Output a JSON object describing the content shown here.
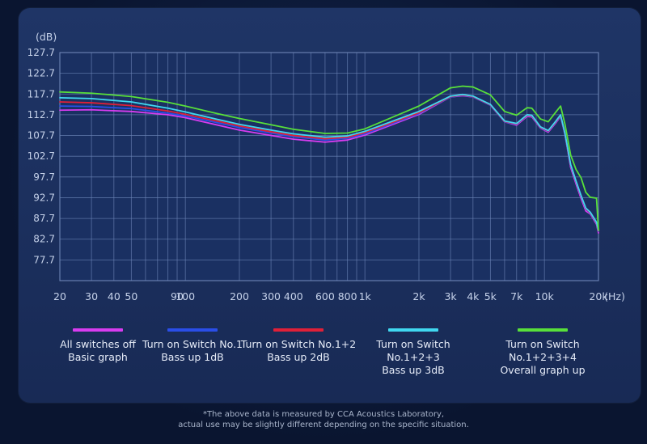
{
  "chart_data": {
    "type": "line",
    "title": "",
    "ylabel": "(dB)",
    "xlabel": "(Hz)",
    "xscale": "log",
    "xlim": [
      20,
      20000
    ],
    "ylim": [
      72.7,
      127.7
    ],
    "y_ticks": [
      127.7,
      122.7,
      117.7,
      112.7,
      107.7,
      102.7,
      97.7,
      92.7,
      87.7,
      82.7,
      77.7
    ],
    "x_tick_labels": [
      {
        "value": 20,
        "label": "20"
      },
      {
        "value": 30,
        "label": "30"
      },
      {
        "value": 40,
        "label": "40"
      },
      {
        "value": 50,
        "label": "50"
      },
      {
        "value": 90,
        "label": "90"
      },
      {
        "value": 100,
        "label": "100"
      },
      {
        "value": 200,
        "label": "200"
      },
      {
        "value": 300,
        "label": "300"
      },
      {
        "value": 400,
        "label": "400"
      },
      {
        "value": 600,
        "label": "600"
      },
      {
        "value": 800,
        "label": "800"
      },
      {
        "value": 1000,
        "label": "1k"
      },
      {
        "value": 2000,
        "label": "2k"
      },
      {
        "value": 3000,
        "label": "3k"
      },
      {
        "value": 4000,
        "label": "4k"
      },
      {
        "value": 5000,
        "label": "5k"
      },
      {
        "value": 7000,
        "label": "7k"
      },
      {
        "value": 10000,
        "label": "10k"
      },
      {
        "value": 20000,
        "label": "20k"
      }
    ],
    "series": [
      {
        "name": "All switches off Basic graph",
        "color": "#d83cf0",
        "points": [
          [
            20,
            113.8
          ],
          [
            30,
            113.9
          ],
          [
            50,
            113.5
          ],
          [
            80,
            112.7
          ],
          [
            100,
            112
          ],
          [
            200,
            109
          ],
          [
            400,
            106.8
          ],
          [
            600,
            106.1
          ],
          [
            800,
            106.6
          ],
          [
            1000,
            107.8
          ],
          [
            2000,
            112.8
          ],
          [
            3000,
            117
          ],
          [
            3500,
            117.3
          ],
          [
            4000,
            117
          ],
          [
            5000,
            115
          ],
          [
            6000,
            111
          ],
          [
            7000,
            110.2
          ],
          [
            8000,
            112.3
          ],
          [
            8500,
            112.2
          ],
          [
            9500,
            109.5
          ],
          [
            10500,
            108.5
          ],
          [
            11500,
            110.6
          ],
          [
            12300,
            112.3
          ],
          [
            13000,
            108
          ],
          [
            14000,
            100
          ],
          [
            15000,
            96
          ],
          [
            16000,
            92.5
          ],
          [
            17000,
            89.5
          ],
          [
            18000,
            88.8
          ],
          [
            19500,
            86.3
          ],
          [
            20000,
            84.2
          ]
        ]
      },
      {
        "name": "Turn on Switch No.1 Bass up 1dB",
        "color": "#2a4ee8",
        "points": [
          [
            20,
            114.8
          ],
          [
            30,
            114.7
          ],
          [
            50,
            114.2
          ],
          [
            80,
            113.1
          ],
          [
            100,
            112.4
          ],
          [
            150,
            110.8
          ],
          [
            200,
            109.6
          ],
          [
            300,
            108.3
          ],
          [
            400,
            107.4
          ],
          [
            600,
            106.6
          ],
          [
            800,
            107
          ],
          [
            1000,
            108.1
          ],
          [
            2000,
            113
          ],
          [
            3000,
            117
          ],
          [
            3500,
            117.4
          ],
          [
            4000,
            117
          ],
          [
            5000,
            115
          ],
          [
            6000,
            111
          ],
          [
            7000,
            110.4
          ],
          [
            8000,
            112.5
          ],
          [
            8500,
            112.4
          ],
          [
            9500,
            109.6
          ],
          [
            10500,
            108.7
          ],
          [
            11500,
            110.8
          ],
          [
            12300,
            112.5
          ],
          [
            13000,
            108
          ],
          [
            14000,
            100.5
          ],
          [
            15000,
            96.5
          ],
          [
            16000,
            93
          ],
          [
            17000,
            90
          ],
          [
            18000,
            89
          ],
          [
            19500,
            86.6
          ],
          [
            20000,
            84.6
          ]
        ]
      },
      {
        "name": "Turn on Switch No.1+2 Bass up 2dB",
        "color": "#e02038",
        "points": [
          [
            20,
            115.8
          ],
          [
            30,
            115.6
          ],
          [
            50,
            114.9
          ],
          [
            80,
            113.6
          ],
          [
            100,
            112.8
          ],
          [
            150,
            111.2
          ],
          [
            200,
            110
          ],
          [
            300,
            108.6
          ],
          [
            400,
            107.7
          ],
          [
            600,
            106.9
          ],
          [
            800,
            107.3
          ],
          [
            1000,
            108.4
          ],
          [
            2000,
            113.2
          ],
          [
            3000,
            117.1
          ],
          [
            3500,
            117.5
          ],
          [
            4000,
            117.1
          ],
          [
            5000,
            115.1
          ],
          [
            6000,
            111.1
          ],
          [
            7000,
            110.5
          ],
          [
            8000,
            112.6
          ],
          [
            8500,
            112.5
          ],
          [
            9500,
            109.7
          ],
          [
            10500,
            108.8
          ],
          [
            11500,
            110.9
          ],
          [
            12300,
            112.6
          ],
          [
            13000,
            108.2
          ],
          [
            14000,
            100.6
          ],
          [
            15000,
            96.6
          ],
          [
            16000,
            93.1
          ],
          [
            17000,
            90.1
          ],
          [
            18000,
            89.1
          ],
          [
            19500,
            86.7
          ],
          [
            20000,
            84.7
          ]
        ]
      },
      {
        "name": "Turn on Switch No.1+2+3 Bass up 3dB",
        "color": "#40d8f0",
        "points": [
          [
            20,
            116.8
          ],
          [
            30,
            116.6
          ],
          [
            50,
            115.8
          ],
          [
            80,
            114.3
          ],
          [
            100,
            113.4
          ],
          [
            150,
            111.6
          ],
          [
            200,
            110.4
          ],
          [
            300,
            109
          ],
          [
            400,
            108.1
          ],
          [
            600,
            107.3
          ],
          [
            800,
            107.6
          ],
          [
            1000,
            108.7
          ],
          [
            2000,
            113.5
          ],
          [
            3000,
            117.2
          ],
          [
            3500,
            117.6
          ],
          [
            4000,
            117.2
          ],
          [
            5000,
            115.2
          ],
          [
            6000,
            111.2
          ],
          [
            7000,
            110.6
          ],
          [
            8000,
            112.7
          ],
          [
            8500,
            112.6
          ],
          [
            9500,
            109.8
          ],
          [
            10500,
            108.9
          ],
          [
            11500,
            111
          ],
          [
            12300,
            112.7
          ],
          [
            13000,
            108.3
          ],
          [
            14000,
            100.7
          ],
          [
            15000,
            96.7
          ],
          [
            16000,
            93.2
          ],
          [
            17000,
            90.2
          ],
          [
            18000,
            89.2
          ],
          [
            19500,
            86.8
          ],
          [
            20000,
            84.8
          ]
        ]
      },
      {
        "name": "Turn on Switch No.1+2+3+4 Overall graph up",
        "color": "#58e03a",
        "points": [
          [
            20,
            118.2
          ],
          [
            30,
            117.9
          ],
          [
            50,
            117.1
          ],
          [
            80,
            115.7
          ],
          [
            100,
            114.8
          ],
          [
            150,
            113
          ],
          [
            200,
            111.8
          ],
          [
            300,
            110.3
          ],
          [
            400,
            109.2
          ],
          [
            600,
            108.2
          ],
          [
            800,
            108.3
          ],
          [
            1000,
            109.3
          ],
          [
            2000,
            114.8
          ],
          [
            3000,
            119.2
          ],
          [
            3500,
            119.6
          ],
          [
            4000,
            119.4
          ],
          [
            5000,
            117.5
          ],
          [
            6000,
            113.5
          ],
          [
            7000,
            112.6
          ],
          [
            8000,
            114.4
          ],
          [
            8500,
            114.3
          ],
          [
            9500,
            111.7
          ],
          [
            10500,
            111
          ],
          [
            11500,
            113.2
          ],
          [
            12300,
            114.8
          ],
          [
            13000,
            110.5
          ],
          [
            14000,
            103
          ],
          [
            15000,
            99.5
          ],
          [
            16000,
            97.5
          ],
          [
            17000,
            94
          ],
          [
            18000,
            92.8
          ],
          [
            19500,
            92.6
          ],
          [
            20000,
            84.9
          ]
        ]
      }
    ]
  },
  "legend": [
    {
      "name": "All switches off\nBasic graph",
      "color": "#d83cf0"
    },
    {
      "name": "Turn on Switch No.1\nBass up 1dB",
      "color": "#2a4ee8"
    },
    {
      "name": "Turn on Switch No.1+2\nBass up 2dB",
      "color": "#e02038"
    },
    {
      "name": "Turn on Switch No.1+2+3\nBass up 3dB",
      "color": "#40d8f0"
    },
    {
      "name": "Turn on Switch No.1+2+3+4\nOverall graph up",
      "color": "#58e03a"
    }
  ],
  "footnote": {
    "line1": "*The above data is measured by CCA Acoustics Laboratory,",
    "line2": "actual use may be slightly different depending on the specific situation."
  }
}
